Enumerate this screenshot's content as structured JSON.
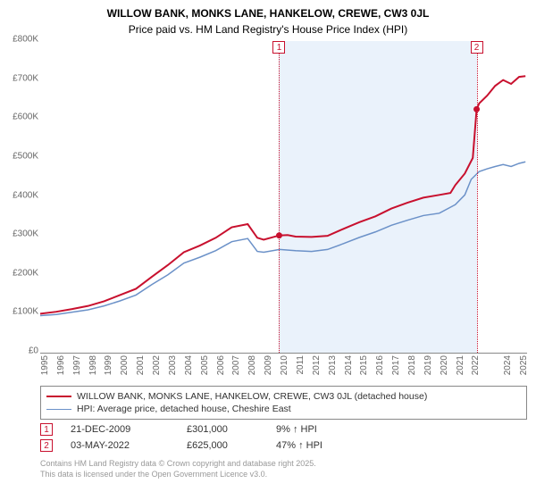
{
  "title": "WILLOW BANK, MONKS LANE, HANKELOW, CREWE, CW3 0JL",
  "subtitle": "Price paid vs. HM Land Registry's House Price Index (HPI)",
  "chart": {
    "type": "line",
    "background_color": "#ffffff",
    "shade_color": "#eaf2fb",
    "x_min": 1995,
    "x_max": 2025.5,
    "x_ticks": [
      1995,
      1996,
      1997,
      1998,
      1999,
      2000,
      2001,
      2002,
      2003,
      2004,
      2005,
      2006,
      2007,
      2008,
      2009,
      2010,
      2011,
      2012,
      2013,
      2014,
      2015,
      2016,
      2017,
      2018,
      2019,
      2020,
      2021,
      2022,
      2024,
      2025
    ],
    "y_min": 0,
    "y_max": 800000,
    "y_ticks": [
      {
        "v": 0,
        "label": "£0"
      },
      {
        "v": 100000,
        "label": "£100K"
      },
      {
        "v": 200000,
        "label": "£200K"
      },
      {
        "v": 300000,
        "label": "£300K"
      },
      {
        "v": 400000,
        "label": "£400K"
      },
      {
        "v": 500000,
        "label": "£500K"
      },
      {
        "v": 600000,
        "label": "£600K"
      },
      {
        "v": 700000,
        "label": "£700K"
      },
      {
        "v": 800000,
        "label": "£800K"
      }
    ],
    "tick_fontsize": 10,
    "tick_color": "#666666",
    "shade_from": 2009.97,
    "shade_to": 2022.34,
    "series": [
      {
        "name": "WILLOW BANK, MONKS LANE, HANKELOW, CREWE, CW3 0JL (detached house)",
        "color": "#c8102e",
        "width": 2,
        "data": [
          [
            1995,
            100000
          ],
          [
            1996,
            105000
          ],
          [
            1997,
            112000
          ],
          [
            1998,
            120000
          ],
          [
            1999,
            132000
          ],
          [
            2000,
            148000
          ],
          [
            2001,
            164000
          ],
          [
            2002,
            195000
          ],
          [
            2003,
            225000
          ],
          [
            2004,
            258000
          ],
          [
            2005,
            275000
          ],
          [
            2006,
            295000
          ],
          [
            2007,
            322000
          ],
          [
            2008,
            330000
          ],
          [
            2008.6,
            295000
          ],
          [
            2009,
            290000
          ],
          [
            2009.97,
            301000
          ],
          [
            2010.5,
            302000
          ],
          [
            2011,
            298000
          ],
          [
            2012,
            297000
          ],
          [
            2013,
            300000
          ],
          [
            2014,
            318000
          ],
          [
            2015,
            335000
          ],
          [
            2016,
            350000
          ],
          [
            2017,
            370000
          ],
          [
            2018,
            385000
          ],
          [
            2019,
            398000
          ],
          [
            2020,
            405000
          ],
          [
            2020.7,
            410000
          ],
          [
            2021,
            430000
          ],
          [
            2021.6,
            460000
          ],
          [
            2022.1,
            500000
          ],
          [
            2022.34,
            625000
          ],
          [
            2022.5,
            640000
          ],
          [
            2023,
            660000
          ],
          [
            2023.5,
            685000
          ],
          [
            2024,
            700000
          ],
          [
            2024.5,
            690000
          ],
          [
            2025,
            708000
          ],
          [
            2025.4,
            710000
          ]
        ]
      },
      {
        "name": "HPI: Average price, detached house, Cheshire East",
        "color": "#6b91c8",
        "width": 1.5,
        "data": [
          [
            1995,
            95000
          ],
          [
            1996,
            98000
          ],
          [
            1997,
            104000
          ],
          [
            1998,
            110000
          ],
          [
            1999,
            120000
          ],
          [
            2000,
            133000
          ],
          [
            2001,
            148000
          ],
          [
            2002,
            175000
          ],
          [
            2003,
            200000
          ],
          [
            2004,
            230000
          ],
          [
            2005,
            245000
          ],
          [
            2006,
            262000
          ],
          [
            2007,
            285000
          ],
          [
            2008,
            293000
          ],
          [
            2008.6,
            260000
          ],
          [
            2009,
            258000
          ],
          [
            2010,
            265000
          ],
          [
            2011,
            262000
          ],
          [
            2012,
            260000
          ],
          [
            2013,
            265000
          ],
          [
            2014,
            280000
          ],
          [
            2015,
            296000
          ],
          [
            2016,
            310000
          ],
          [
            2017,
            327000
          ],
          [
            2018,
            340000
          ],
          [
            2019,
            352000
          ],
          [
            2020,
            358000
          ],
          [
            2021,
            380000
          ],
          [
            2021.6,
            405000
          ],
          [
            2022,
            445000
          ],
          [
            2022.5,
            465000
          ],
          [
            2023,
            472000
          ],
          [
            2023.5,
            478000
          ],
          [
            2024,
            483000
          ],
          [
            2024.5,
            478000
          ],
          [
            2025,
            486000
          ],
          [
            2025.4,
            490000
          ]
        ]
      }
    ],
    "events": [
      {
        "n": "1",
        "x": 2009.97,
        "date": "21-DEC-2009",
        "price": "£301,000",
        "pct": "9% ↑ HPI",
        "marker_y": 301000
      },
      {
        "n": "2",
        "x": 2022.34,
        "date": "03-MAY-2022",
        "price": "£625,000",
        "pct": "47% ↑ HPI",
        "marker_y": 625000
      }
    ]
  },
  "footer": {
    "line1": "Contains HM Land Registry data © Crown copyright and database right 2025.",
    "line2": "This data is licensed under the Open Government Licence v3.0."
  }
}
